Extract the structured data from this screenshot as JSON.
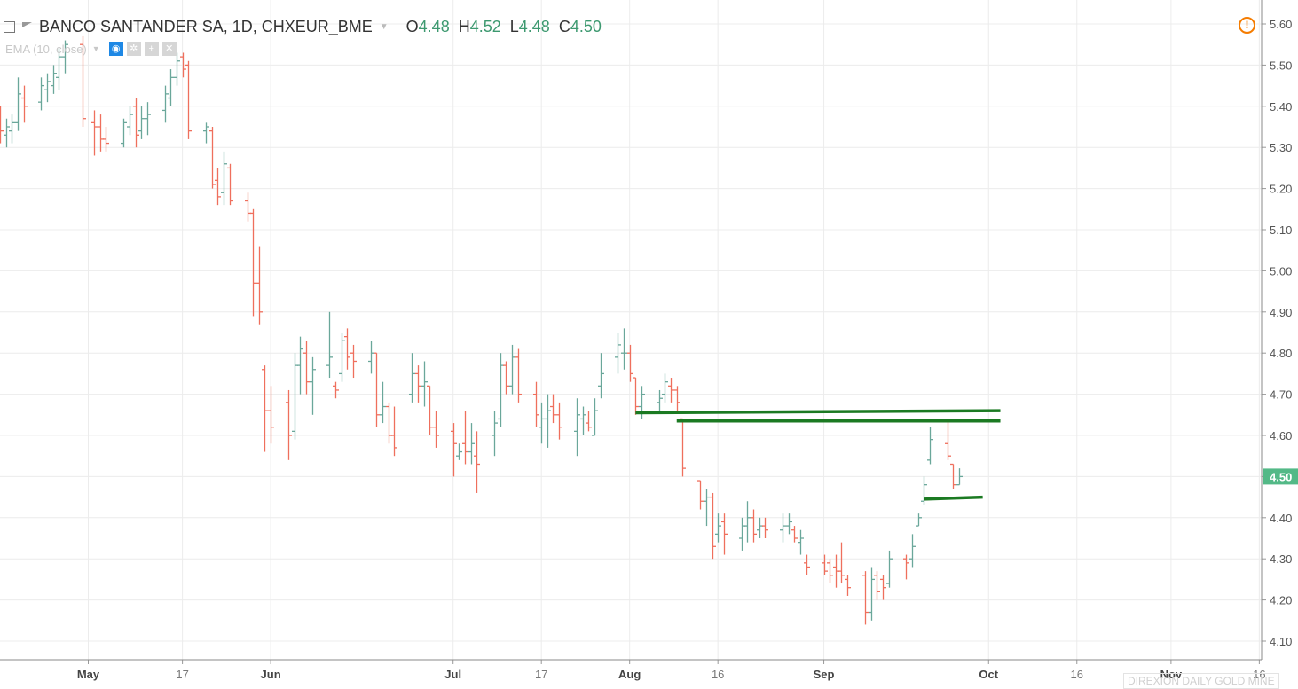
{
  "header": {
    "symbol_title": "BANCO SANTANDER SA, 1D, CHXEUR_BME",
    "ohlc": [
      {
        "key": "O",
        "value": "4.48"
      },
      {
        "key": "H",
        "value": "4.52"
      },
      {
        "key": "L",
        "value": "4.48"
      },
      {
        "key": "C",
        "value": "4.50"
      }
    ],
    "indicator_label": "EMA (10, close)",
    "icons": [
      "collapse-icon",
      "flag-icon",
      "chevron-down-icon",
      "eye-icon",
      "gear-icon",
      "plus-icon",
      "close-icon",
      "alert-icon"
    ]
  },
  "colors": {
    "up": "#6aa79a",
    "down": "#ef6f5d",
    "trendline": "#1b7a22",
    "price_badge": "#53b987",
    "grid": "#ececec"
  },
  "watermark": "DIREXION DAILY GOLD MINE",
  "chart_data": {
    "type": "ohlc-bar",
    "title": "BANCO SANTANDER SA, 1D, CHXEUR_BME",
    "y_axis": {
      "min": 4.1,
      "max": 5.6,
      "ticks": [
        4.1,
        4.2,
        4.3,
        4.4,
        4.5,
        4.6,
        4.7,
        4.8,
        4.9,
        5.0,
        5.1,
        5.2,
        5.3,
        5.4,
        5.5,
        5.6
      ],
      "side": "right"
    },
    "x_axis": {
      "start": "2018-04-16",
      "end": "2018-11-17",
      "ticks": [
        {
          "date": "2018-05-01",
          "label": "May"
        },
        {
          "date": "2018-05-17",
          "label": "17"
        },
        {
          "date": "2018-06-01",
          "label": "Jun"
        },
        {
          "date": "2018-07-02",
          "label": "Jul"
        },
        {
          "date": "2018-07-17",
          "label": "17"
        },
        {
          "date": "2018-08-01",
          "label": "Aug"
        },
        {
          "date": "2018-08-16",
          "label": "16"
        },
        {
          "date": "2018-09-03",
          "label": "Sep"
        },
        {
          "date": "2018-10-01",
          "label": "Oct"
        },
        {
          "date": "2018-10-16",
          "label": "16"
        },
        {
          "date": "2018-11-01",
          "label": "Nov"
        },
        {
          "date": "2018-11-16",
          "label": "16"
        }
      ]
    },
    "grid": true,
    "last_price": "4.50",
    "bars": [
      [
        "2018-04-16",
        5.39,
        5.4,
        5.31,
        5.34
      ],
      [
        "2018-04-17",
        5.33,
        5.37,
        5.3,
        5.35
      ],
      [
        "2018-04-18",
        5.34,
        5.38,
        5.31,
        5.36
      ],
      [
        "2018-04-19",
        5.36,
        5.47,
        5.34,
        5.43
      ],
      [
        "2018-04-20",
        5.42,
        5.45,
        5.36,
        5.4
      ],
      [
        "2018-04-23",
        5.41,
        5.47,
        5.39,
        5.45
      ],
      [
        "2018-04-24",
        5.44,
        5.48,
        5.41,
        5.46
      ],
      [
        "2018-04-25",
        5.45,
        5.5,
        5.43,
        5.48
      ],
      [
        "2018-04-26",
        5.47,
        5.54,
        5.44,
        5.52
      ],
      [
        "2018-04-27",
        5.52,
        5.56,
        5.48,
        5.55
      ],
      [
        "2018-04-30",
        5.55,
        5.57,
        5.35,
        5.37
      ],
      [
        "2018-05-02",
        5.36,
        5.39,
        5.28,
        5.35
      ],
      [
        "2018-05-03",
        5.35,
        5.38,
        5.29,
        5.32
      ],
      [
        "2018-05-04",
        5.32,
        5.35,
        5.29,
        5.31
      ],
      [
        "2018-05-07",
        5.31,
        5.37,
        5.3,
        5.36
      ],
      [
        "2018-05-08",
        5.35,
        5.4,
        5.33,
        5.38
      ],
      [
        "2018-05-09",
        5.4,
        5.42,
        5.3,
        5.33
      ],
      [
        "2018-05-10",
        5.34,
        5.4,
        5.32,
        5.37
      ],
      [
        "2018-05-11",
        5.37,
        5.41,
        5.33,
        5.38
      ],
      [
        "2018-05-14",
        5.39,
        5.45,
        5.36,
        5.43
      ],
      [
        "2018-05-15",
        5.42,
        5.49,
        5.4,
        5.47
      ],
      [
        "2018-05-16",
        5.47,
        5.53,
        5.45,
        5.51
      ],
      [
        "2018-05-17",
        5.52,
        5.53,
        5.47,
        5.49
      ],
      [
        "2018-05-18",
        5.5,
        5.51,
        5.32,
        5.34
      ],
      [
        "2018-05-21",
        5.34,
        5.36,
        5.31,
        5.35
      ],
      [
        "2018-05-22",
        5.34,
        5.35,
        5.2,
        5.21
      ],
      [
        "2018-05-23",
        5.22,
        5.25,
        5.16,
        5.18
      ],
      [
        "2018-05-24",
        5.19,
        5.29,
        5.16,
        5.26
      ],
      [
        "2018-05-25",
        5.25,
        5.26,
        5.16,
        5.17
      ],
      [
        "2018-05-28",
        5.17,
        5.19,
        5.12,
        5.14
      ],
      [
        "2018-05-29",
        5.14,
        5.15,
        4.89,
        4.97
      ],
      [
        "2018-05-30",
        4.97,
        5.06,
        4.87,
        4.9
      ],
      [
        "2018-05-31",
        4.76,
        4.77,
        4.56,
        4.66
      ],
      [
        "2018-06-01",
        4.66,
        4.72,
        4.58,
        4.62
      ],
      [
        "2018-06-04",
        4.68,
        4.71,
        4.54,
        4.6
      ],
      [
        "2018-06-05",
        4.61,
        4.8,
        4.59,
        4.77
      ],
      [
        "2018-06-06",
        4.77,
        4.84,
        4.7,
        4.81
      ],
      [
        "2018-06-07",
        4.8,
        4.83,
        4.7,
        4.73
      ],
      [
        "2018-06-08",
        4.73,
        4.79,
        4.65,
        4.76
      ],
      [
        "2018-06-11",
        4.77,
        4.9,
        4.74,
        4.79
      ],
      [
        "2018-06-12",
        4.72,
        4.73,
        4.69,
        4.71
      ],
      [
        "2018-06-13",
        4.75,
        4.85,
        4.73,
        4.83
      ],
      [
        "2018-06-14",
        4.84,
        4.86,
        4.76,
        4.79
      ],
      [
        "2018-06-15",
        4.8,
        4.82,
        4.74,
        4.78
      ],
      [
        "2018-06-18",
        4.78,
        4.83,
        4.75,
        4.8
      ],
      [
        "2018-06-19",
        4.8,
        4.8,
        4.62,
        4.65
      ],
      [
        "2018-06-20",
        4.65,
        4.73,
        4.63,
        4.67
      ],
      [
        "2018-06-21",
        4.67,
        4.68,
        4.58,
        4.6
      ],
      [
        "2018-06-22",
        4.6,
        4.67,
        4.55,
        4.57
      ],
      [
        "2018-06-25",
        4.7,
        4.8,
        4.68,
        4.75
      ],
      [
        "2018-06-26",
        4.75,
        4.77,
        4.68,
        4.72
      ],
      [
        "2018-06-27",
        4.72,
        4.78,
        4.67,
        4.73
      ],
      [
        "2018-06-28",
        4.72,
        4.72,
        4.6,
        4.62
      ],
      [
        "2018-06-29",
        4.62,
        4.66,
        4.57,
        4.6
      ],
      [
        "2018-07-02",
        4.61,
        4.63,
        4.5,
        4.58
      ],
      [
        "2018-07-03",
        4.55,
        4.58,
        4.54,
        4.56
      ],
      [
        "2018-07-04",
        4.58,
        4.66,
        4.53,
        4.56
      ],
      [
        "2018-07-05",
        4.56,
        4.63,
        4.53,
        4.58
      ],
      [
        "2018-07-06",
        4.55,
        4.61,
        4.46,
        4.53
      ],
      [
        "2018-07-09",
        4.6,
        4.66,
        4.55,
        4.63
      ],
      [
        "2018-07-10",
        4.64,
        4.8,
        4.62,
        4.77
      ],
      [
        "2018-07-11",
        4.77,
        4.78,
        4.7,
        4.72
      ],
      [
        "2018-07-12",
        4.72,
        4.82,
        4.7,
        4.79
      ],
      [
        "2018-07-13",
        4.79,
        4.81,
        4.68,
        4.7
      ],
      [
        "2018-07-16",
        4.7,
        4.73,
        4.62,
        4.65
      ],
      [
        "2018-07-17",
        4.62,
        4.68,
        4.58,
        4.64
      ],
      [
        "2018-07-18",
        4.64,
        4.7,
        4.57,
        4.66
      ],
      [
        "2018-07-19",
        4.67,
        4.7,
        4.63,
        4.65
      ],
      [
        "2018-07-20",
        4.65,
        4.68,
        4.59,
        4.62
      ],
      [
        "2018-07-23",
        4.61,
        4.69,
        4.55,
        4.65
      ],
      [
        "2018-07-24",
        4.64,
        4.67,
        4.6,
        4.65
      ],
      [
        "2018-07-25",
        4.63,
        4.66,
        4.61,
        4.62
      ],
      [
        "2018-07-26",
        4.6,
        4.69,
        4.6,
        4.66
      ],
      [
        "2018-07-27",
        4.72,
        4.8,
        4.69,
        4.75
      ],
      [
        "2018-07-30",
        4.79,
        4.85,
        4.75,
        4.82
      ],
      [
        "2018-07-31",
        4.8,
        4.86,
        4.76,
        4.8
      ],
      [
        "2018-08-01",
        4.8,
        4.82,
        4.73,
        4.75
      ],
      [
        "2018-08-02",
        4.74,
        4.74,
        4.65,
        4.67
      ],
      [
        "2018-08-03",
        4.67,
        4.72,
        4.64,
        4.7
      ],
      [
        "2018-08-06",
        4.68,
        4.71,
        4.66,
        4.69
      ],
      [
        "2018-08-07",
        4.7,
        4.75,
        4.68,
        4.73
      ],
      [
        "2018-08-08",
        4.72,
        4.74,
        4.68,
        4.71
      ],
      [
        "2018-08-09",
        4.71,
        4.72,
        4.66,
        4.68
      ],
      [
        "2018-08-10",
        4.64,
        4.64,
        4.5,
        4.52
      ],
      [
        "2018-08-13",
        4.49,
        4.49,
        4.42,
        4.44
      ],
      [
        "2018-08-14",
        4.44,
        4.47,
        4.38,
        4.45
      ],
      [
        "2018-08-15",
        4.45,
        4.46,
        4.3,
        4.33
      ],
      [
        "2018-08-16",
        4.36,
        4.41,
        4.34,
        4.38
      ],
      [
        "2018-08-17",
        4.39,
        4.41,
        4.31,
        4.36
      ],
      [
        "2018-08-20",
        4.35,
        4.4,
        4.32,
        4.38
      ],
      [
        "2018-08-21",
        4.38,
        4.44,
        4.34,
        4.4
      ],
      [
        "2018-08-22",
        4.4,
        4.42,
        4.34,
        4.36
      ],
      [
        "2018-08-23",
        4.37,
        4.4,
        4.35,
        4.38
      ],
      [
        "2018-08-24",
        4.38,
        4.4,
        4.35,
        4.37
      ],
      [
        "2018-08-27",
        4.37,
        4.41,
        4.34,
        4.38
      ],
      [
        "2018-08-28",
        4.38,
        4.41,
        4.36,
        4.39
      ],
      [
        "2018-08-29",
        4.37,
        4.38,
        4.34,
        4.35
      ],
      [
        "2018-08-30",
        4.34,
        4.37,
        4.31,
        4.35
      ],
      [
        "2018-08-31",
        4.29,
        4.31,
        4.26,
        4.28
      ],
      [
        "2018-09-03",
        4.29,
        4.31,
        4.26,
        4.27
      ],
      [
        "2018-09-04",
        4.29,
        4.3,
        4.24,
        4.26
      ],
      [
        "2018-09-05",
        4.28,
        4.31,
        4.23,
        4.27
      ],
      [
        "2018-09-06",
        4.27,
        4.34,
        4.24,
        4.26
      ],
      [
        "2018-09-07",
        4.25,
        4.26,
        4.21,
        4.23
      ],
      [
        "2018-09-10",
        4.26,
        4.27,
        4.14,
        4.17
      ],
      [
        "2018-09-11",
        4.17,
        4.28,
        4.15,
        4.25
      ],
      [
        "2018-09-12",
        4.26,
        4.27,
        4.2,
        4.22
      ],
      [
        "2018-09-13",
        4.25,
        4.26,
        4.2,
        4.23
      ],
      [
        "2018-09-14",
        4.24,
        4.32,
        4.23,
        4.3
      ],
      [
        "2018-09-17",
        4.3,
        4.31,
        4.25,
        4.29
      ],
      [
        "2018-09-18",
        4.3,
        4.36,
        4.28,
        4.33
      ],
      [
        "2018-09-19",
        4.38,
        4.41,
        4.38,
        4.4
      ],
      [
        "2018-09-20",
        4.44,
        4.5,
        4.43,
        4.48
      ],
      [
        "2018-09-21",
        4.54,
        4.62,
        4.53,
        4.59
      ],
      [
        "2018-09-24",
        4.58,
        4.64,
        4.54,
        4.55
      ],
      [
        "2018-09-25",
        4.53,
        4.53,
        4.47,
        4.48
      ],
      [
        "2018-09-26",
        4.48,
        4.52,
        4.48,
        4.5
      ]
    ],
    "drawn_lines": [
      {
        "from": [
          "2018-08-02",
          4.655
        ],
        "to": [
          "2018-10-03",
          4.66
        ]
      },
      {
        "from": [
          "2018-08-09",
          4.635
        ],
        "to": [
          "2018-10-03",
          4.635
        ]
      },
      {
        "from": [
          "2018-09-20",
          4.445
        ],
        "to": [
          "2018-09-30",
          4.45
        ]
      }
    ]
  }
}
